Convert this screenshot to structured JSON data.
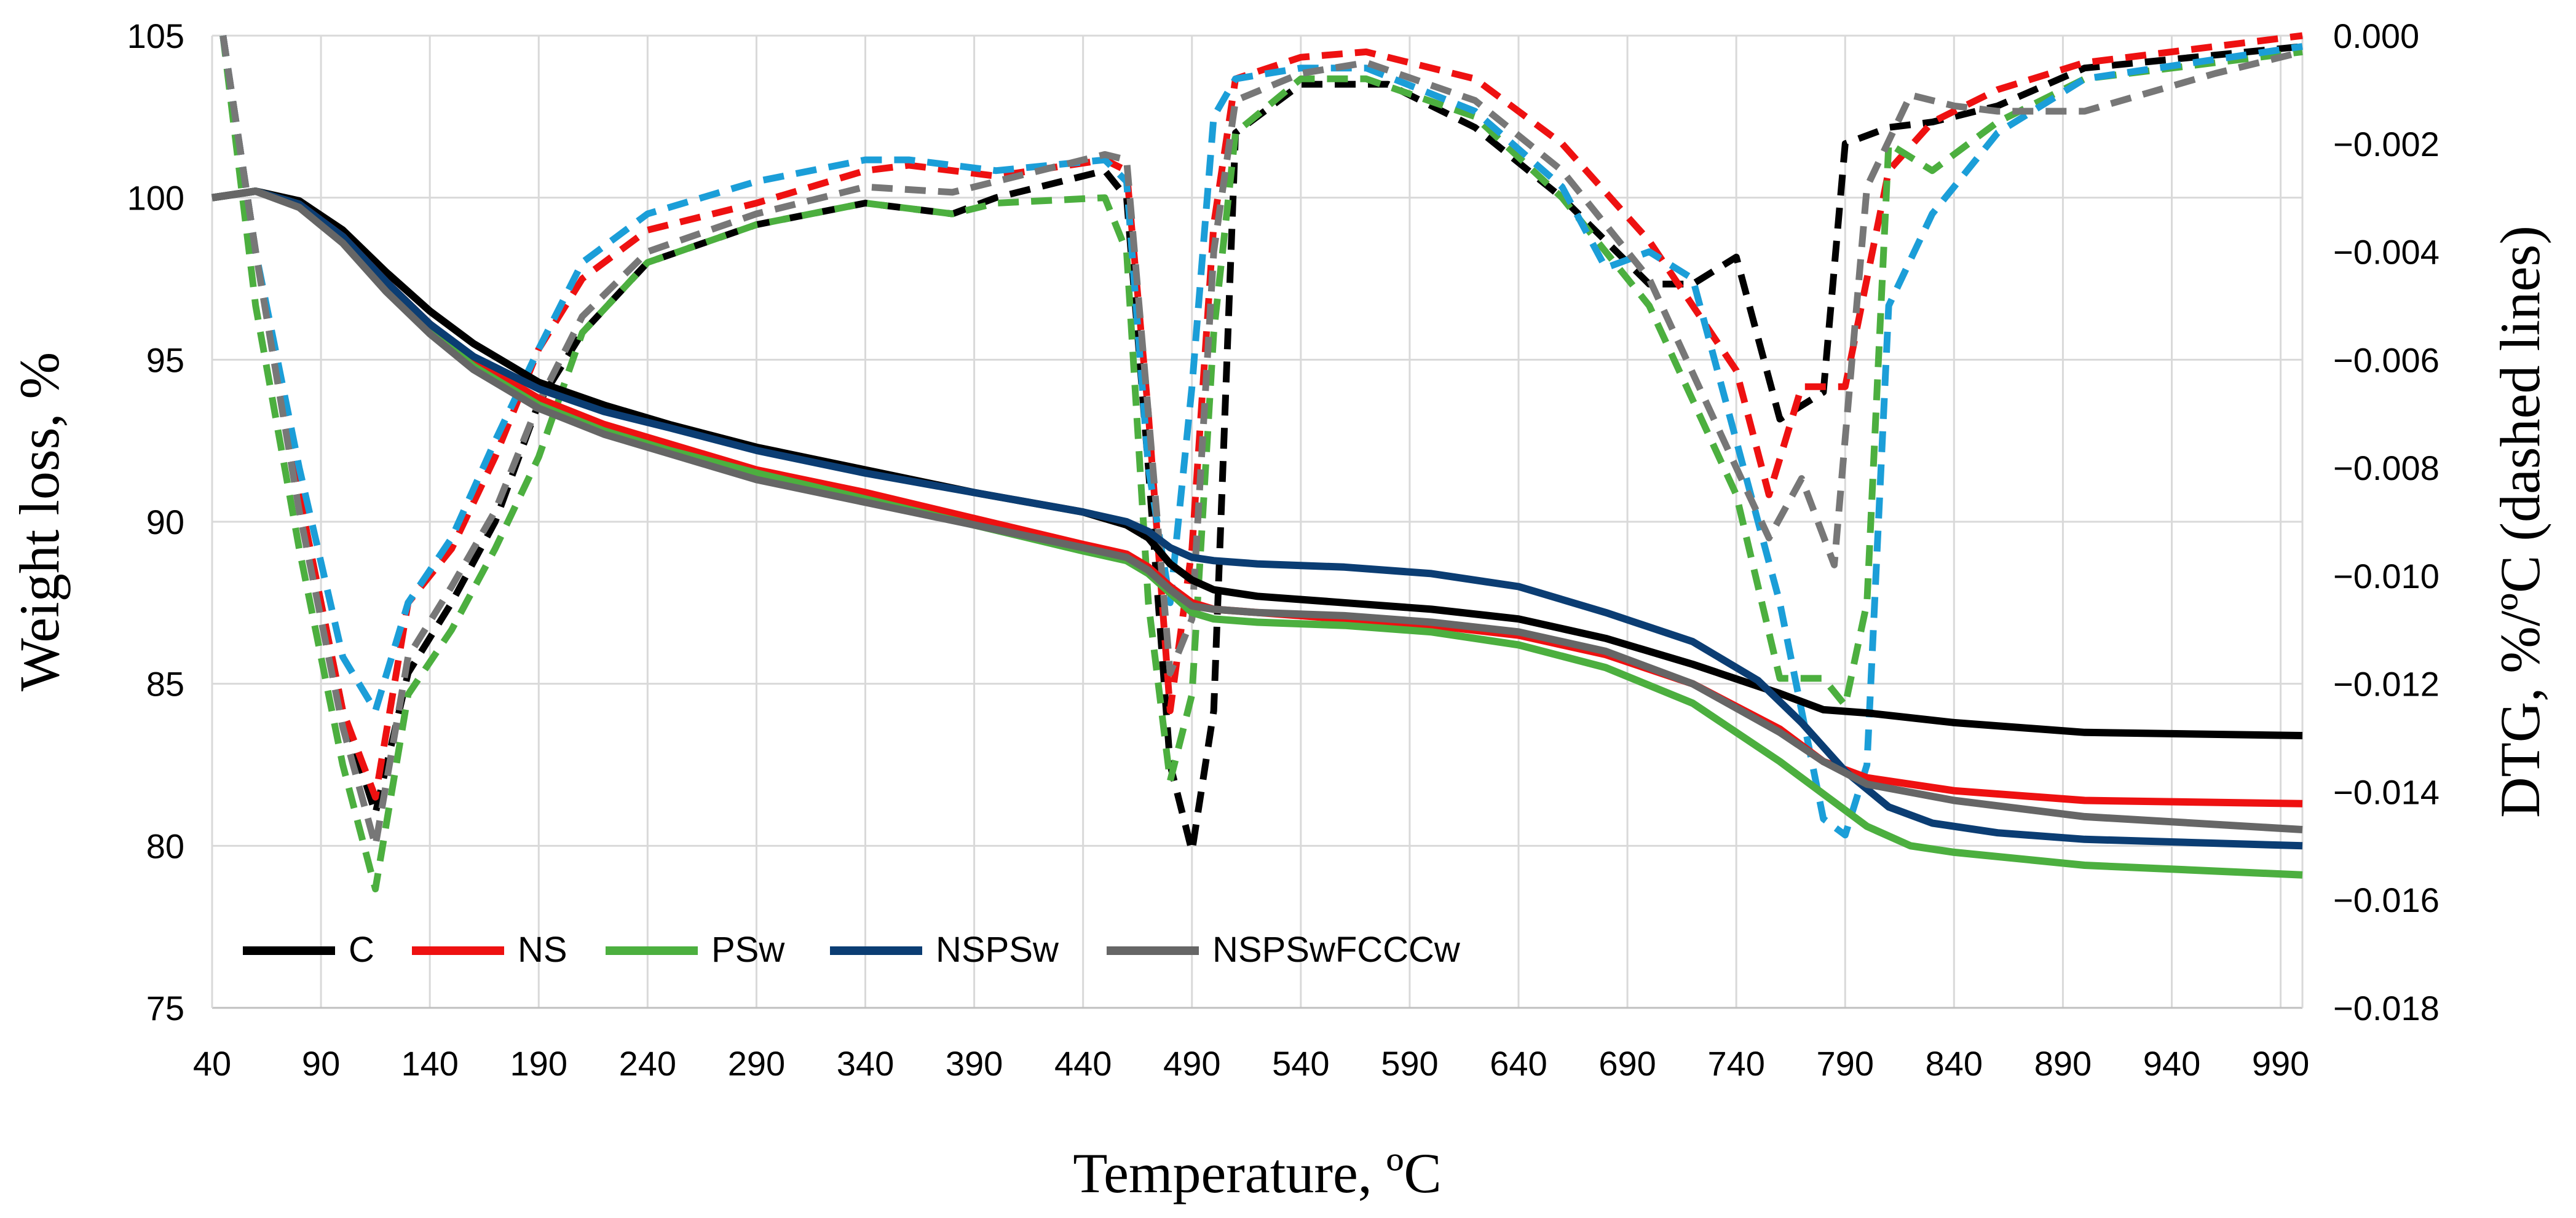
{
  "chart_data": {
    "type": "line",
    "xlabel": "Temperature, ºC",
    "ylabel": "Weight loss, %",
    "y2label": "DTG, %/ºC (dashed lines)",
    "xlim": [
      40,
      1000
    ],
    "ylim": [
      75,
      105
    ],
    "y2lim": [
      -0.018,
      0.0
    ],
    "xticks": [
      "40",
      "90",
      "140",
      "190",
      "240",
      "290",
      "340",
      "390",
      "440",
      "490",
      "540",
      "590",
      "640",
      "690",
      "740",
      "790",
      "840",
      "890",
      "940",
      "990"
    ],
    "yticks": [
      "75",
      "80",
      "85",
      "90",
      "95",
      "100",
      "105"
    ],
    "y2ticks": [
      "-0.018",
      "-0.016",
      "-0.014",
      "-0.012",
      "-0.010",
      "-0.008",
      "-0.006",
      "-0.004",
      "-0.002",
      "0.000"
    ],
    "grid": true,
    "legend_position": "bottom-left",
    "legend": [
      {
        "name": "C",
        "color": "#000000"
      },
      {
        "name": "NS",
        "color": "#ee1111"
      },
      {
        "name": "PSw",
        "color": "#4caf3f"
      },
      {
        "name": "NSPSw",
        "color": "#0b3d73"
      },
      {
        "name": "NSPSwFCCCw",
        "color": "#666666"
      }
    ],
    "series": [
      {
        "name": "C",
        "axis": "left",
        "style": "solid",
        "color": "#000000",
        "x": [
          40,
          60,
          80,
          100,
          120,
          140,
          160,
          190,
          220,
          250,
          290,
          340,
          390,
          440,
          460,
          470,
          480,
          490,
          500,
          520,
          560,
          600,
          640,
          680,
          720,
          760,
          780,
          800,
          840,
          900,
          1000
        ],
        "y": [
          100,
          100.2,
          99.9,
          99,
          97.7,
          96.5,
          95.5,
          94.3,
          93.6,
          93.0,
          92.3,
          91.6,
          90.9,
          90.3,
          89.9,
          89.5,
          88.7,
          88.2,
          87.9,
          87.7,
          87.5,
          87.3,
          87.0,
          86.4,
          85.6,
          84.7,
          84.2,
          84.1,
          83.8,
          83.5,
          83.4
        ]
      },
      {
        "name": "NS",
        "axis": "left",
        "style": "solid",
        "color": "#ee1111",
        "x": [
          40,
          60,
          80,
          100,
          120,
          140,
          160,
          190,
          220,
          250,
          290,
          340,
          390,
          440,
          460,
          470,
          480,
          490,
          500,
          520,
          560,
          600,
          640,
          680,
          720,
          760,
          780,
          800,
          840,
          900,
          1000
        ],
        "y": [
          100,
          100.2,
          99.8,
          98.8,
          97.4,
          96.1,
          95.0,
          93.8,
          93.0,
          92.4,
          91.6,
          90.9,
          90.1,
          89.3,
          89.0,
          88.6,
          88.0,
          87.5,
          87.3,
          87.2,
          87.0,
          86.8,
          86.5,
          85.9,
          85.0,
          83.6,
          82.6,
          82.1,
          81.7,
          81.4,
          81.3
        ]
      },
      {
        "name": "PSw",
        "axis": "left",
        "style": "solid",
        "color": "#4caf3f",
        "x": [
          40,
          60,
          80,
          100,
          120,
          140,
          160,
          190,
          220,
          250,
          290,
          340,
          390,
          440,
          460,
          470,
          480,
          490,
          500,
          520,
          560,
          600,
          640,
          680,
          720,
          760,
          780,
          800,
          820,
          840,
          900,
          1000
        ],
        "y": [
          100,
          100.2,
          99.8,
          98.7,
          97.2,
          95.9,
          94.8,
          93.6,
          92.8,
          92.2,
          91.5,
          90.7,
          89.9,
          89.1,
          88.8,
          88.4,
          87.8,
          87.2,
          87.0,
          86.9,
          86.8,
          86.6,
          86.2,
          85.5,
          84.4,
          82.6,
          81.6,
          80.6,
          80.0,
          79.8,
          79.4,
          79.1
        ]
      },
      {
        "name": "NSPSw",
        "axis": "left",
        "style": "solid",
        "color": "#0b3d73",
        "x": [
          40,
          60,
          80,
          100,
          120,
          140,
          160,
          190,
          220,
          250,
          290,
          340,
          390,
          440,
          460,
          470,
          480,
          490,
          500,
          520,
          560,
          600,
          640,
          680,
          720,
          750,
          770,
          790,
          810,
          830,
          860,
          900,
          1000
        ],
        "y": [
          100,
          100.2,
          99.8,
          98.8,
          97.4,
          96.1,
          95.1,
          94.1,
          93.4,
          92.9,
          92.2,
          91.5,
          90.9,
          90.3,
          90.0,
          89.7,
          89.2,
          88.9,
          88.8,
          88.7,
          88.6,
          88.4,
          88.0,
          87.2,
          86.3,
          85.1,
          83.8,
          82.3,
          81.2,
          80.7,
          80.4,
          80.2,
          80.0
        ]
      },
      {
        "name": "NSPSwFCCCw",
        "axis": "left",
        "style": "solid",
        "color": "#666666",
        "x": [
          40,
          60,
          80,
          100,
          120,
          140,
          160,
          190,
          220,
          250,
          290,
          340,
          390,
          440,
          460,
          470,
          480,
          490,
          500,
          520,
          560,
          600,
          640,
          680,
          720,
          760,
          780,
          800,
          840,
          900,
          1000
        ],
        "y": [
          100,
          100.2,
          99.7,
          98.6,
          97.1,
          95.8,
          94.7,
          93.5,
          92.7,
          92.1,
          91.3,
          90.6,
          89.9,
          89.2,
          88.9,
          88.5,
          87.9,
          87.4,
          87.3,
          87.2,
          87.1,
          86.9,
          86.6,
          86.0,
          85.0,
          83.5,
          82.6,
          81.9,
          81.4,
          80.9,
          80.5
        ]
      },
      {
        "name": "C",
        "axis": "right",
        "style": "dashed",
        "color": "#000000",
        "x": [
          45,
          60,
          80,
          100,
          115,
          130,
          150,
          170,
          190,
          210,
          240,
          290,
          340,
          380,
          400,
          450,
          460,
          470,
          480,
          490,
          500,
          510,
          540,
          580,
          620,
          660,
          700,
          720,
          740,
          760,
          780,
          790,
          810,
          830,
          860,
          900,
          1000
        ],
        "y": [
          0.0,
          -0.004,
          -0.0085,
          -0.0125,
          -0.0144,
          -0.0118,
          -0.0105,
          -0.009,
          -0.0068,
          -0.0055,
          -0.0042,
          -0.0035,
          -0.0031,
          -0.0033,
          -0.003,
          -0.0025,
          -0.003,
          -0.008,
          -0.0135,
          -0.0151,
          -0.0125,
          -0.0018,
          -0.0009,
          -0.0009,
          -0.0017,
          -0.003,
          -0.0046,
          -0.0046,
          -0.0041,
          -0.0071,
          -0.0066,
          -0.002,
          -0.0017,
          -0.0016,
          -0.0013,
          -0.0006,
          -0.0002
        ]
      },
      {
        "name": "NS",
        "axis": "right",
        "style": "dashed",
        "color": "#ee1111",
        "x": [
          45,
          60,
          80,
          100,
          115,
          130,
          150,
          170,
          190,
          210,
          240,
          290,
          340,
          360,
          400,
          450,
          460,
          470,
          480,
          490,
          500,
          510,
          540,
          570,
          620,
          660,
          700,
          740,
          755,
          770,
          790,
          810,
          830,
          860,
          900,
          1000
        ],
        "y": [
          0.0,
          -0.004,
          -0.0085,
          -0.0125,
          -0.0141,
          -0.0105,
          -0.0095,
          -0.0078,
          -0.0058,
          -0.0045,
          -0.0036,
          -0.0031,
          -0.0025,
          -0.0024,
          -0.0026,
          -0.0023,
          -0.0025,
          -0.007,
          -0.0125,
          -0.0095,
          -0.0035,
          -0.0008,
          -0.0004,
          -0.0003,
          -0.0008,
          -0.002,
          -0.0038,
          -0.0062,
          -0.0085,
          -0.0065,
          -0.0065,
          -0.0025,
          -0.0016,
          -0.001,
          -0.0005,
          0.0
        ]
      },
      {
        "name": "PSw",
        "axis": "right",
        "style": "dashed",
        "color": "#4caf3f",
        "x": [
          45,
          60,
          80,
          100,
          115,
          130,
          150,
          170,
          190,
          210,
          240,
          290,
          340,
          380,
          400,
          450,
          460,
          470,
          480,
          490,
          500,
          510,
          540,
          570,
          620,
          660,
          700,
          740,
          760,
          780,
          790,
          800,
          810,
          830,
          860,
          900,
          1000
        ],
        "y": [
          0.0,
          -0.005,
          -0.0095,
          -0.0135,
          -0.0158,
          -0.0122,
          -0.011,
          -0.0095,
          -0.0078,
          -0.0055,
          -0.0042,
          -0.0035,
          -0.0031,
          -0.0033,
          -0.0031,
          -0.003,
          -0.004,
          -0.0105,
          -0.0138,
          -0.0122,
          -0.0055,
          -0.0018,
          -0.0008,
          -0.0008,
          -0.0015,
          -0.003,
          -0.005,
          -0.0085,
          -0.0119,
          -0.0119,
          -0.0124,
          -0.0105,
          -0.002,
          -0.0025,
          -0.0016,
          -0.0008,
          -0.0003
        ]
      },
      {
        "name": "NSPSw",
        "axis": "right",
        "style": "dashed",
        "color": "#1b9ed8",
        "x": [
          45,
          60,
          80,
          100,
          115,
          130,
          150,
          170,
          190,
          210,
          240,
          290,
          340,
          360,
          400,
          450,
          460,
          470,
          480,
          490,
          500,
          510,
          540,
          570,
          620,
          660,
          680,
          700,
          720,
          740,
          760,
          780,
          790,
          800,
          810,
          830,
          860,
          900,
          1000
        ],
        "y": [
          0.0,
          -0.004,
          -0.008,
          -0.0115,
          -0.0125,
          -0.0105,
          -0.0093,
          -0.0075,
          -0.0058,
          -0.0042,
          -0.0033,
          -0.0027,
          -0.0023,
          -0.0023,
          -0.0025,
          -0.0023,
          -0.0027,
          -0.008,
          -0.0105,
          -0.0065,
          -0.0015,
          -0.0008,
          -0.0006,
          -0.0006,
          -0.0014,
          -0.0028,
          -0.0043,
          -0.004,
          -0.0045,
          -0.0075,
          -0.0105,
          -0.0145,
          -0.0148,
          -0.0135,
          -0.005,
          -0.0033,
          -0.0018,
          -0.0008,
          -0.0002
        ]
      },
      {
        "name": "NSPSwFCCCw",
        "axis": "right",
        "style": "dashed",
        "color": "#777777",
        "x": [
          45,
          60,
          80,
          100,
          115,
          130,
          150,
          170,
          190,
          210,
          240,
          290,
          340,
          380,
          400,
          450,
          460,
          470,
          480,
          490,
          500,
          510,
          540,
          570,
          620,
          660,
          700,
          740,
          755,
          770,
          785,
          800,
          820,
          840,
          860,
          900,
          960,
          1000
        ],
        "y": [
          0.0,
          -0.004,
          -0.0088,
          -0.0128,
          -0.015,
          -0.0115,
          -0.0102,
          -0.0088,
          -0.0068,
          -0.0052,
          -0.004,
          -0.0033,
          -0.0028,
          -0.0029,
          -0.0027,
          -0.0022,
          -0.0023,
          -0.007,
          -0.0118,
          -0.0108,
          -0.004,
          -0.0012,
          -0.0007,
          -0.0005,
          -0.0012,
          -0.0025,
          -0.0045,
          -0.008,
          -0.0093,
          -0.0082,
          -0.0098,
          -0.0028,
          -0.0011,
          -0.0013,
          -0.0014,
          -0.0014,
          -0.0007,
          -0.0003
        ]
      }
    ]
  }
}
